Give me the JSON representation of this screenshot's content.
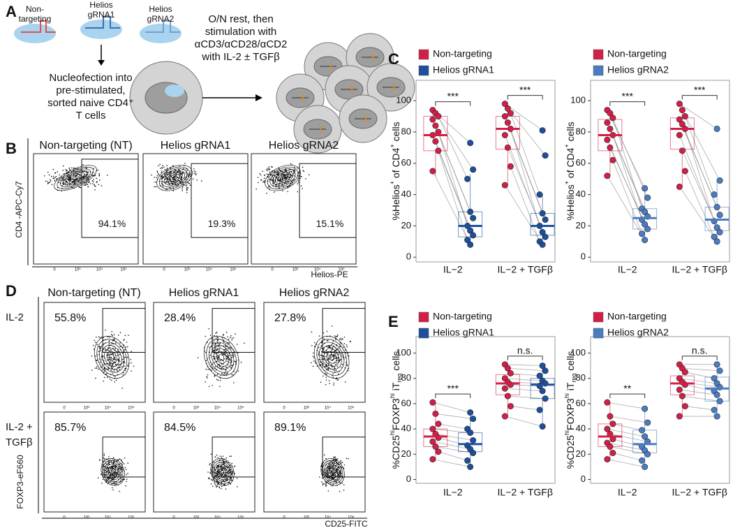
{
  "panel_letters": [
    "A",
    "B",
    "C",
    "D",
    "E"
  ],
  "panel_a": {
    "guides": [
      [
        "Non-",
        "targeting"
      ],
      [
        "Helios",
        "gRNA1"
      ],
      [
        "Helios",
        "gRNA2"
      ]
    ],
    "nucleofection": [
      "Nucleofection into",
      "pre-stimulated,",
      "sorted naive CD4⁺",
      "T cells"
    ],
    "stimulation": [
      "O/N rest, then",
      "stimulation with",
      "αCD3/αCD28/αCD2",
      "with IL-2 ± TGFβ"
    ]
  },
  "flow_ticks": [
    "0",
    "10³",
    "10⁴",
    "10⁵"
  ],
  "panel_b": {
    "y_label": "CD4 -APC-Cy7",
    "x_label": "Helios-PE",
    "plots": [
      {
        "title": "Non-targeting (NT)",
        "gate": "94.1%"
      },
      {
        "title": "Helios gRNA1",
        "gate": "19.3%"
      },
      {
        "title": "Helios gRNA2",
        "gate": "15.1%"
      }
    ]
  },
  "panel_d": {
    "y_label": "FOXP3-eF660",
    "x_label": "CD25-FITC",
    "titles": [
      "Non-targeting (NT)",
      "Helios gRNA1",
      "Helios gRNA2"
    ],
    "row_labels": [
      [
        "IL-2"
      ],
      [
        "IL-2 +",
        "TGFβ"
      ]
    ],
    "gates": [
      [
        "55.8%",
        "28.4%",
        "27.8%"
      ],
      [
        "85.7%",
        "84.5%",
        "89.1%"
      ]
    ]
  },
  "chart_data": [
    {
      "type": "box",
      "y_label": [
        [
          "%Helios",
          "base"
        ],
        [
          "+",
          "sup"
        ],
        [
          " of CD4",
          "base"
        ],
        [
          "+",
          "sup"
        ],
        [
          " cells",
          "base"
        ]
      ],
      "categories": [
        "IL−2",
        "IL−2 + TGFβ"
      ],
      "significance": [
        "***",
        "***"
      ],
      "ylim": [
        -3,
        113
      ],
      "yticks": [
        0,
        20,
        40,
        60,
        80,
        100
      ],
      "series": [
        {
          "name": "Non-targeting",
          "color": "#d31f47",
          "boxes": [
            {
              "low": 52,
              "q1": 68,
              "median": 78,
              "q3": 90,
              "high": 94,
              "points": [
                94,
                92,
                90,
                88,
                84,
                80,
                78,
                74,
                68,
                55
              ]
            },
            {
              "low": 46,
              "q1": 69,
              "median": 82,
              "q3": 90,
              "high": 98,
              "points": [
                98,
                95,
                92,
                90,
                86,
                82,
                78,
                70,
                58,
                46
              ]
            }
          ]
        },
        {
          "name": "Helios gRNA1",
          "color": "#1d4f9e",
          "boxes": [
            {
              "low": 8,
              "q1": 13,
              "median": 20,
              "q3": 29,
              "high": 53,
              "points": [
                73,
                56,
                50,
                29,
                25,
                20,
                17,
                14,
                11,
                8
              ]
            },
            {
              "low": 8,
              "q1": 14,
              "median": 20,
              "q3": 28,
              "high": 40,
              "points": [
                81,
                65,
                40,
                28,
                24,
                20,
                16,
                13,
                10,
                8
              ]
            }
          ]
        }
      ]
    },
    {
      "type": "box",
      "y_label": [
        [
          "%Helios",
          "base"
        ],
        [
          "+",
          "sup"
        ],
        [
          " of CD4",
          "base"
        ],
        [
          "+",
          "sup"
        ],
        [
          " cells",
          "base"
        ]
      ],
      "categories": [
        "IL−2",
        "IL−2 + TGFβ"
      ],
      "significance": [
        "***",
        "***"
      ],
      "ylim": [
        -3,
        113
      ],
      "yticks": [
        0,
        20,
        40,
        60,
        80,
        100
      ],
      "series": [
        {
          "name": "Non-targeting",
          "color": "#d31f47",
          "boxes": [
            {
              "low": 52,
              "q1": 68,
              "median": 78,
              "q3": 88,
              "high": 94,
              "points": [
                94,
                92,
                89,
                86,
                82,
                78,
                75,
                70,
                62,
                52
              ]
            },
            {
              "low": 45,
              "q1": 69,
              "median": 82,
              "q3": 89,
              "high": 98,
              "points": [
                98,
                94,
                90,
                88,
                85,
                82,
                78,
                68,
                55,
                45
              ]
            }
          ]
        },
        {
          "name": "Helios gRNA2",
          "color": "#4a7cc4",
          "boxes": [
            {
              "low": 11,
              "q1": 18,
              "median": 25,
              "q3": 31,
              "high": 44,
              "points": [
                44,
                38,
                31,
                29,
                26,
                24,
                21,
                18,
                15,
                11
              ]
            },
            {
              "low": 10,
              "q1": 17,
              "median": 24,
              "q3": 32,
              "high": 49,
              "points": [
                82,
                49,
                40,
                32,
                27,
                23,
                19,
                16,
                13,
                10
              ]
            }
          ]
        }
      ]
    },
    {
      "type": "box",
      "y_label": [
        [
          "%CD25",
          "base"
        ],
        [
          "hi",
          "sup"
        ],
        [
          "FOXP3",
          "base"
        ],
        [
          "hi",
          "sup"
        ],
        [
          " iT",
          "base"
        ],
        [
          "reg",
          "sub"
        ],
        [
          " cells",
          "base"
        ]
      ],
      "categories": [
        "IL−2",
        "IL−2 + TGFβ"
      ],
      "significance": [
        "***",
        "n.s."
      ],
      "ylim": [
        -3,
        113
      ],
      "yticks": [
        0,
        20,
        40,
        60,
        80,
        100
      ],
      "series": [
        {
          "name": "Non-targeting",
          "color": "#d31f47",
          "boxes": [
            {
              "low": 16,
              "q1": 26,
              "median": 34,
              "q3": 40,
              "high": 61,
              "points": [
                61,
                52,
                44,
                40,
                36,
                33,
                30,
                26,
                22,
                16
              ]
            },
            {
              "low": 50,
              "q1": 67,
              "median": 76,
              "q3": 83,
              "high": 91,
              "points": [
                91,
                88,
                84,
                80,
                77,
                75,
                72,
                66,
                58,
                50
              ]
            }
          ]
        },
        {
          "name": "Helios gRNA1",
          "color": "#1d4f9e",
          "boxes": [
            {
              "low": 10,
              "q1": 22,
              "median": 28,
              "q3": 37,
              "high": 53,
              "points": [
                53,
                48,
                40,
                37,
                31,
                27,
                24,
                21,
                15,
                10
              ]
            },
            {
              "low": 42,
              "q1": 64,
              "median": 75,
              "q3": 80,
              "high": 90,
              "points": [
                90,
                86,
                82,
                78,
                76,
                74,
                70,
                64,
                55,
                42
              ]
            }
          ]
        }
      ]
    },
    {
      "type": "box",
      "y_label": [
        [
          "%CD25",
          "base"
        ],
        [
          "hi",
          "sup"
        ],
        [
          "FOXP3",
          "base"
        ],
        [
          "hi",
          "sup"
        ],
        [
          " iT",
          "base"
        ],
        [
          "reg",
          "sub"
        ],
        [
          " cells",
          "base"
        ]
      ],
      "categories": [
        "IL−2",
        "IL−2 + TGFβ"
      ],
      "significance": [
        "**",
        "n.s."
      ],
      "ylim": [
        -3,
        113
      ],
      "yticks": [
        0,
        20,
        40,
        60,
        80,
        100
      ],
      "series": [
        {
          "name": "Non-targeting",
          "color": "#d31f47",
          "boxes": [
            {
              "low": 16,
              "q1": 26,
              "median": 34,
              "q3": 44,
              "high": 61,
              "points": [
                61,
                50,
                44,
                40,
                36,
                32,
                29,
                26,
                21,
                16
              ]
            },
            {
              "low": 50,
              "q1": 67,
              "median": 76,
              "q3": 82,
              "high": 91,
              "points": [
                91,
                88,
                85,
                80,
                77,
                75,
                71,
                66,
                58,
                50
              ]
            }
          ]
        },
        {
          "name": "Helios gRNA2",
          "color": "#4a7cc4",
          "boxes": [
            {
              "low": 10,
              "q1": 21,
              "median": 28,
              "q3": 39,
              "high": 56,
              "points": [
                56,
                45,
                39,
                34,
                30,
                26,
                23,
                20,
                15,
                10
              ]
            },
            {
              "low": 50,
              "q1": 62,
              "median": 72,
              "q3": 81,
              "high": 91,
              "points": [
                91,
                86,
                80,
                76,
                73,
                70,
                67,
                62,
                55,
                50
              ]
            }
          ]
        }
      ]
    }
  ]
}
